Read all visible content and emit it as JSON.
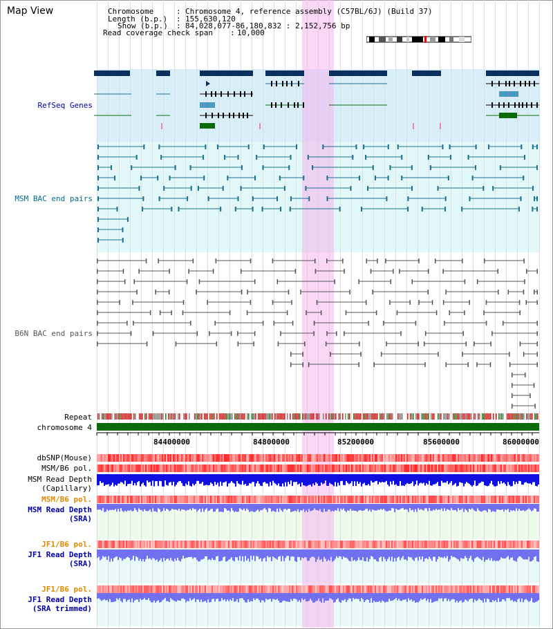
{
  "page": {
    "title": "Map View"
  },
  "header": {
    "chromosome_label": "Chromosome",
    "chromosome_value": "Chromosome 4, reference assembly (C57BL/6J) (Build 37)",
    "length_label": "Length (b.p.)",
    "length_value": "155,630,120",
    "show_label": "Show (b.p.)",
    "show_value": "84,028,077-86,180,832 : 2,152,756 bp",
    "coverage_label": "Read coverage check span",
    "coverage_value": "10,000"
  },
  "tracks": {
    "refseq": "RefSeq Genes",
    "msm_bac": "MSM BAC end pairs",
    "b6n_bac": "B6N BAC end pairs",
    "repeat": "Repeat",
    "chromosome": "chromosome 4",
    "dbsnp": "dbSNP(Mouse)",
    "msm_b6_pol_1": "MSM/B6 pol.",
    "msm_read_depth_cap_1": "MSM Read Depth",
    "msm_read_depth_cap_2": "(Capillary)",
    "msm_b6_pol_2": "MSM/B6 pol.",
    "msm_read_depth_sra_1": "MSM Read Depth",
    "msm_read_depth_sra_2": "(SRA)",
    "jf1_b6_pol_1": "JF1/B6 pol.",
    "jf1_read_depth_sra_1": "JF1 Read Depth",
    "jf1_read_depth_sra_2": "(SRA)",
    "jf1_b6_pol_2": "JF1/B6 pol.",
    "jf1_read_depth_trim_1": "JF1 Read Depth",
    "jf1_read_depth_trim_2": "(SRA trimmed)"
  },
  "axis": {
    "ticks": [
      "84400000",
      "84800000",
      "85200000",
      "85600000",
      "86000000"
    ]
  },
  "colors": {
    "highlight": "#f4b6ec",
    "refseq_bg": "#d8effa",
    "msm_bac_bg": "#e2f7f7",
    "gene_dark": "#0a2f5c",
    "gene_teal": "#1b6f8f",
    "gene_green": "#0b6b0b",
    "repeat_red": "#dd2222",
    "chrom_green": "#0b6b0b",
    "depth_blue": "#1010e0",
    "depth_lightblue": "#7070f0",
    "pol_red": "#ff6060",
    "label_blue": "#0000aa",
    "label_teal": "#006a8a",
    "label_orange": "#e08a00"
  }
}
